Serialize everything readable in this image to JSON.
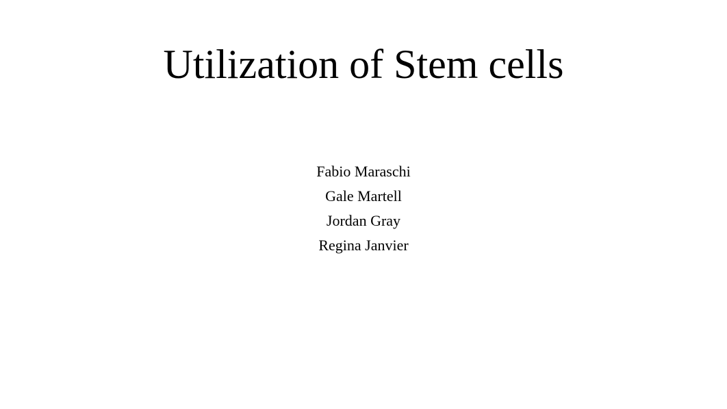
{
  "title": "Utilization of Stem cells",
  "authors": [
    "Fabio Maraschi",
    "Gale Martell",
    "Jordan Gray",
    "Regina Janvier"
  ],
  "styling": {
    "background_color": "#ffffff",
    "text_color": "#000000",
    "title_fontsize": 60,
    "author_fontsize": 22,
    "font_family": "Georgia, Times New Roman, serif"
  }
}
